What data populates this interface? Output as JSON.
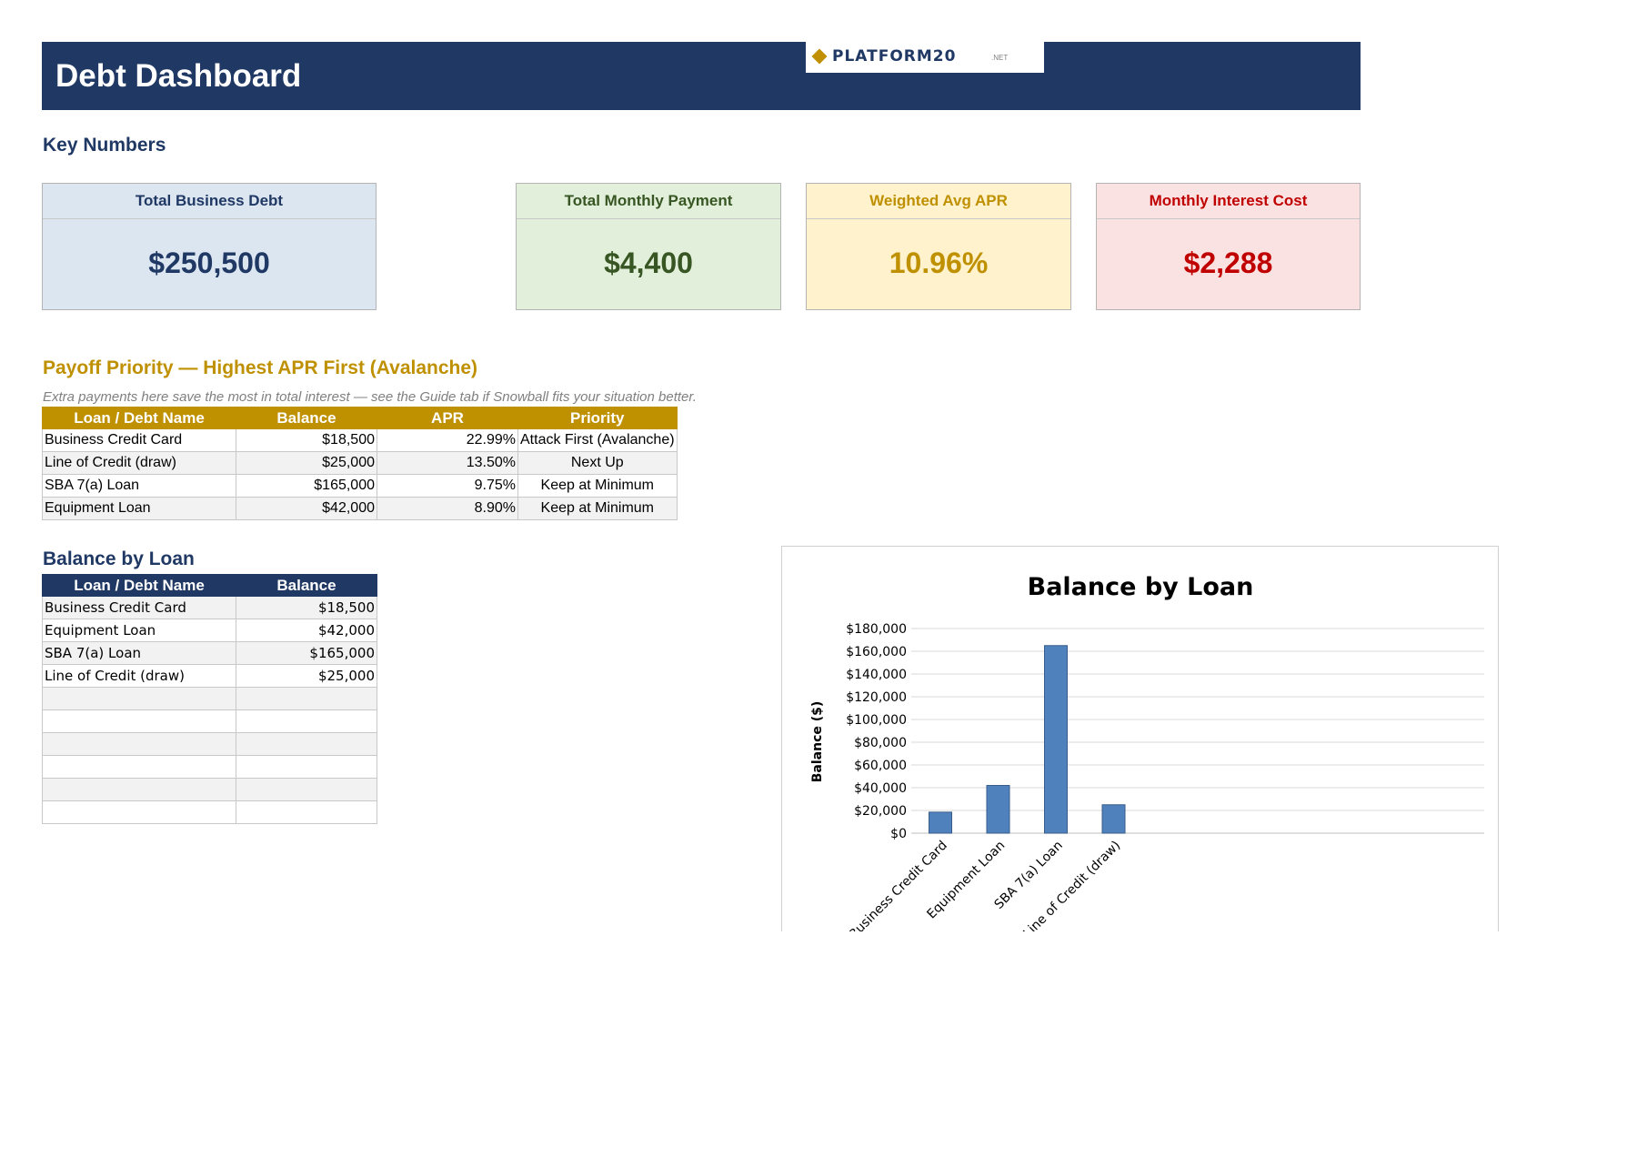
{
  "header": {
    "title": "Debt Dashboard",
    "logo_text": "PLATFORM20",
    "logo_suffix": ".NET"
  },
  "key_numbers": {
    "title": "Key Numbers",
    "cards": [
      {
        "label": "Total Business Debt",
        "value": "$250,500"
      },
      {
        "label": "Total Monthly Payment",
        "value": "$4,400"
      },
      {
        "label": "Weighted Avg APR",
        "value": "10.96%"
      },
      {
        "label": "Monthly Interest Cost",
        "value": "$2,288"
      }
    ]
  },
  "payoff": {
    "title": "Payoff Priority — Highest APR First (Avalanche)",
    "note": "Extra payments here save the most in total interest — see the Guide tab if Snowball fits your situation better.",
    "columns": [
      "Loan / Debt Name",
      "Balance",
      "APR",
      "Priority"
    ],
    "rows": [
      {
        "name": "Business Credit Card",
        "balance": "$18,500",
        "apr": "22.99%",
        "priority": "Attack First (Avalanche)"
      },
      {
        "name": "Line of Credit (draw)",
        "balance": "$25,000",
        "apr": "13.50%",
        "priority": "Next Up"
      },
      {
        "name": "SBA 7(a) Loan",
        "balance": "$165,000",
        "apr": "9.75%",
        "priority": "Keep at Minimum"
      },
      {
        "name": "Equipment Loan",
        "balance": "$42,000",
        "apr": "8.90%",
        "priority": "Keep at Minimum"
      }
    ]
  },
  "balance_by_loan": {
    "title": "Balance by Loan",
    "columns": [
      "Loan / Debt Name",
      "Balance"
    ],
    "rows": [
      {
        "name": "Business Credit Card",
        "balance": "$18,500"
      },
      {
        "name": "Equipment Loan",
        "balance": "$42,000"
      },
      {
        "name": "SBA 7(a) Loan",
        "balance": "$165,000"
      },
      {
        "name": "Line of Credit (draw)",
        "balance": "$25,000"
      },
      {
        "name": "",
        "balance": ""
      },
      {
        "name": "",
        "balance": ""
      },
      {
        "name": "",
        "balance": ""
      },
      {
        "name": "",
        "balance": ""
      },
      {
        "name": "",
        "balance": ""
      },
      {
        "name": "",
        "balance": ""
      }
    ]
  },
  "chart_data": {
    "type": "bar",
    "title": "Balance by Loan",
    "xlabel": "",
    "ylabel": "Balance ($)",
    "categories": [
      "Business Credit Card",
      "Equipment Loan",
      "SBA 7(a) Loan",
      "Line of Credit (draw)"
    ],
    "values": [
      18500,
      42000,
      165000,
      25000
    ],
    "ylim": [
      0,
      180000
    ],
    "yticks": [
      0,
      20000,
      40000,
      60000,
      80000,
      100000,
      120000,
      140000,
      160000,
      180000
    ],
    "ytick_labels": [
      "$0",
      "$20,000",
      "$40,000",
      "$60,000",
      "$80,000",
      "$100,000",
      "$120,000",
      "$140,000",
      "$160,000",
      "$180,000"
    ],
    "bar_color": "#4f81bd",
    "grid": true,
    "legend": "none"
  }
}
